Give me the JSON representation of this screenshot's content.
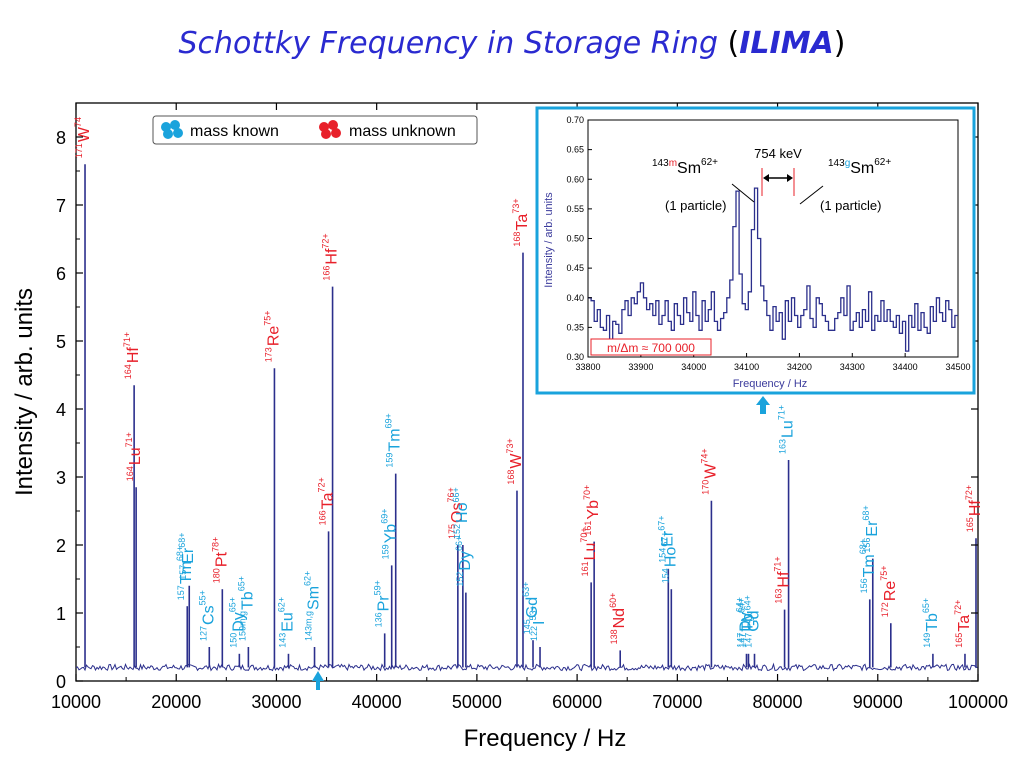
{
  "slide": {
    "title_main": "Schottky Frequency in Storage Ring",
    "title_open": "(",
    "title_ring": "ILIMA",
    "title_close": ")"
  },
  "colors": {
    "known": "#1aa3dc",
    "unknown": "#e8202a",
    "line": "#2b2f8c",
    "inset_frame": "#1aa3dc",
    "title": "#2a2ad0"
  },
  "chart_data": [
    {
      "type": "line",
      "xlabel": "Frequency / Hz",
      "ylabel": "Intensity / arb. units",
      "xlim": [
        10000,
        100000
      ],
      "ylim": [
        0,
        8.5
      ],
      "xticks": [
        10000,
        20000,
        30000,
        40000,
        50000,
        60000,
        70000,
        80000,
        90000,
        100000
      ],
      "yticks": [
        0,
        1,
        2,
        3,
        4,
        5,
        6,
        7,
        8
      ],
      "grid": false,
      "legend": {
        "placement": "top-left",
        "entries": [
          {
            "label": "mass known",
            "status": "known"
          },
          {
            "label": "mass unknown",
            "status": "unknown"
          }
        ]
      },
      "baseline": 0.2,
      "peaks": [
        {
          "x": 10900,
          "y": 7.6,
          "A": "171",
          "el": "W",
          "q": "74",
          "status": "unknown"
        },
        {
          "x": 15800,
          "y": 4.35,
          "A": "164",
          "el": "Hf",
          "q": "71+",
          "status": "unknown"
        },
        {
          "x": 16000,
          "y": 2.85,
          "A": "164",
          "el": "Lu",
          "q": "71+",
          "status": "unknown"
        },
        {
          "x": 21100,
          "y": 1.1,
          "A": "157",
          "el": "Tm",
          "q": "68+",
          "status": "known"
        },
        {
          "x": 21300,
          "y": 1.4,
          "A": "157",
          "el": "Er",
          "q": "68+",
          "status": "known"
        },
        {
          "x": 23300,
          "y": 0.5,
          "A": "127",
          "el": "Cs",
          "q": "55+",
          "status": "known"
        },
        {
          "x": 24600,
          "y": 1.35,
          "A": "180",
          "el": "Pt",
          "q": "78+",
          "status": "unknown"
        },
        {
          "x": 26300,
          "y": 0.4,
          "A": "150",
          "el": "Dy",
          "q": "65+",
          "status": "known"
        },
        {
          "x": 27200,
          "y": 0.5,
          "A": "150m,g",
          "el": "Tb",
          "q": "65+",
          "status": "known"
        },
        {
          "x": 29800,
          "y": 4.6,
          "A": "173",
          "el": "Re",
          "q": "75+",
          "status": "unknown"
        },
        {
          "x": 31200,
          "y": 0.4,
          "A": "143",
          "el": "Eu",
          "q": "62+",
          "status": "known"
        },
        {
          "x": 33800,
          "y": 0.5,
          "A": "143m,g",
          "el": "Sm",
          "q": "62+",
          "status": "known"
        },
        {
          "x": 35600,
          "y": 5.8,
          "A": "166",
          "el": "Hf",
          "q": "72+",
          "status": "unknown"
        },
        {
          "x": 35200,
          "y": 2.2,
          "A": "166",
          "el": "Ta",
          "q": "72+",
          "status": "unknown"
        },
        {
          "x": 40800,
          "y": 0.7,
          "A": "136",
          "el": "Pr",
          "q": "59+",
          "status": "known"
        },
        {
          "x": 41500,
          "y": 1.7,
          "A": "159",
          "el": "Yb",
          "q": "69+",
          "status": "known"
        },
        {
          "x": 41900,
          "y": 3.05,
          "A": "159",
          "el": "Tm",
          "q": "69+",
          "status": "known"
        },
        {
          "x": 48100,
          "y": 2.0,
          "A": "175",
          "el": "Os",
          "q": "76+",
          "status": "unknown"
        },
        {
          "x": 48600,
          "y": 2.0,
          "A": "152",
          "el": "Ho",
          "q": "66+",
          "status": "known"
        },
        {
          "x": 48900,
          "y": 1.3,
          "A": "152",
          "el": "Dy",
          "q": "66+",
          "status": "known"
        },
        {
          "x": 54000,
          "y": 2.8,
          "A": "168",
          "el": "W",
          "q": "73+",
          "status": "unknown"
        },
        {
          "x": 54600,
          "y": 6.3,
          "A": "168",
          "el": "Ta",
          "q": "73+",
          "status": "unknown"
        },
        {
          "x": 55600,
          "y": 0.6,
          "A": "145",
          "el": "Gd",
          "q": "63+",
          "status": "known"
        },
        {
          "x": 56300,
          "y": 0.5,
          "A": "122",
          "el": "I",
          "q": "53+",
          "status": "known"
        },
        {
          "x": 61400,
          "y": 1.45,
          "A": "161",
          "el": "Lu",
          "q": "70+",
          "status": "unknown"
        },
        {
          "x": 61700,
          "y": 2.05,
          "A": "161",
          "el": "Yb",
          "q": "70+",
          "status": "unknown"
        },
        {
          "x": 64300,
          "y": 0.45,
          "A": "138",
          "el": "Nd",
          "q": "60+",
          "status": "unknown"
        },
        {
          "x": 69100,
          "y": 1.65,
          "A": "154",
          "el": "Er",
          "q": "67+",
          "status": "known"
        },
        {
          "x": 69400,
          "y": 1.35,
          "A": "154",
          "el": "Ho",
          "q": "67+",
          "status": "known"
        },
        {
          "x": 73400,
          "y": 2.65,
          "A": "170",
          "el": "W",
          "q": "74+",
          "status": "unknown"
        },
        {
          "x": 76900,
          "y": 0.4,
          "A": "147",
          "el": "Dy",
          "q": "64+",
          "status": "known"
        },
        {
          "x": 77100,
          "y": 0.4,
          "A": "147",
          "el": "Tb",
          "q": "64+",
          "status": "known"
        },
        {
          "x": 77700,
          "y": 0.4,
          "A": "147",
          "el": "Gd",
          "q": "64+",
          "status": "known"
        },
        {
          "x": 80700,
          "y": 1.05,
          "A": "163",
          "el": "Hf",
          "q": "71+",
          "status": "unknown"
        },
        {
          "x": 81100,
          "y": 3.25,
          "A": "163",
          "el": "Lu",
          "q": "71+",
          "status": "known"
        },
        {
          "x": 89200,
          "y": 1.2,
          "A": "156",
          "el": "Tm",
          "q": "68+",
          "status": "known"
        },
        {
          "x": 89500,
          "y": 1.8,
          "A": "156",
          "el": "Er",
          "q": "68+",
          "status": "known"
        },
        {
          "x": 91300,
          "y": 0.85,
          "A": "172",
          "el": "Re",
          "q": "75+",
          "status": "unknown"
        },
        {
          "x": 95500,
          "y": 0.4,
          "A": "149",
          "el": "Tb",
          "q": "65+",
          "status": "known"
        },
        {
          "x": 98700,
          "y": 0.4,
          "A": "165",
          "el": "Ta",
          "q": "72+",
          "status": "unknown"
        },
        {
          "x": 99800,
          "y": 2.1,
          "A": "165",
          "el": "Hf",
          "q": "72+",
          "status": "unknown"
        }
      ],
      "marker_x": 34200
    },
    {
      "type": "line",
      "xlabel": "Frequency / Hz",
      "ylabel": "Intensity / arb. units",
      "xlim": [
        33800,
        34500
      ],
      "ylim": [
        0.3,
        0.7
      ],
      "xticks": [
        33800,
        33900,
        34000,
        34100,
        34200,
        34300,
        34400,
        34500
      ],
      "yticks": [
        0.3,
        0.35,
        0.4,
        0.45,
        0.5,
        0.55,
        0.6,
        0.65,
        0.7
      ],
      "grid": false,
      "peaks": [
        {
          "x": 34130,
          "y": 0.58,
          "label_A": "143",
          "label_state": "m",
          "label_el": "Sm",
          "label_q": "62+",
          "label_note": "(1 particle)"
        },
        {
          "x": 34190,
          "y": 0.585,
          "label_A": "143",
          "label_state": "g",
          "label_el": "Sm",
          "label_q": "62+",
          "label_note": "(1 particle)"
        }
      ],
      "separation_label": "754 keV",
      "resolution_label": "m/Δm ≈ 700 000",
      "step_values": [
        0.4,
        0.395,
        0.36,
        0.38,
        0.35,
        0.345,
        0.37,
        0.33,
        0.36,
        0.355,
        0.34,
        0.38,
        0.395,
        0.37,
        0.4,
        0.39,
        0.41,
        0.425,
        0.4,
        0.38,
        0.39,
        0.37,
        0.395,
        0.355,
        0.37,
        0.395,
        0.36,
        0.345,
        0.39,
        0.37,
        0.355,
        0.4,
        0.375,
        0.36,
        0.41,
        0.37,
        0.345,
        0.395,
        0.36,
        0.38,
        0.41,
        0.36,
        0.345,
        0.365,
        0.375,
        0.4,
        0.43,
        0.52,
        0.58,
        0.44,
        0.39,
        0.38,
        0.41,
        0.515,
        0.585,
        0.5,
        0.42,
        0.395,
        0.37,
        0.345,
        0.385,
        0.36,
        0.375,
        0.33,
        0.395,
        0.36,
        0.4,
        0.37,
        0.35,
        0.37,
        0.38,
        0.42,
        0.365,
        0.35,
        0.4,
        0.39,
        0.37,
        0.36,
        0.345,
        0.345,
        0.365,
        0.375,
        0.4,
        0.37,
        0.42,
        0.345,
        0.36,
        0.375,
        0.35,
        0.38,
        0.36,
        0.41,
        0.345,
        0.37,
        0.36,
        0.395,
        0.36,
        0.38,
        0.36,
        0.35,
        0.37,
        0.34,
        0.36,
        0.31,
        0.37,
        0.35,
        0.39,
        0.345,
        0.375,
        0.35,
        0.34,
        0.385,
        0.36,
        0.4,
        0.375,
        0.36,
        0.395,
        0.38,
        0.35,
        0.37
      ]
    }
  ]
}
